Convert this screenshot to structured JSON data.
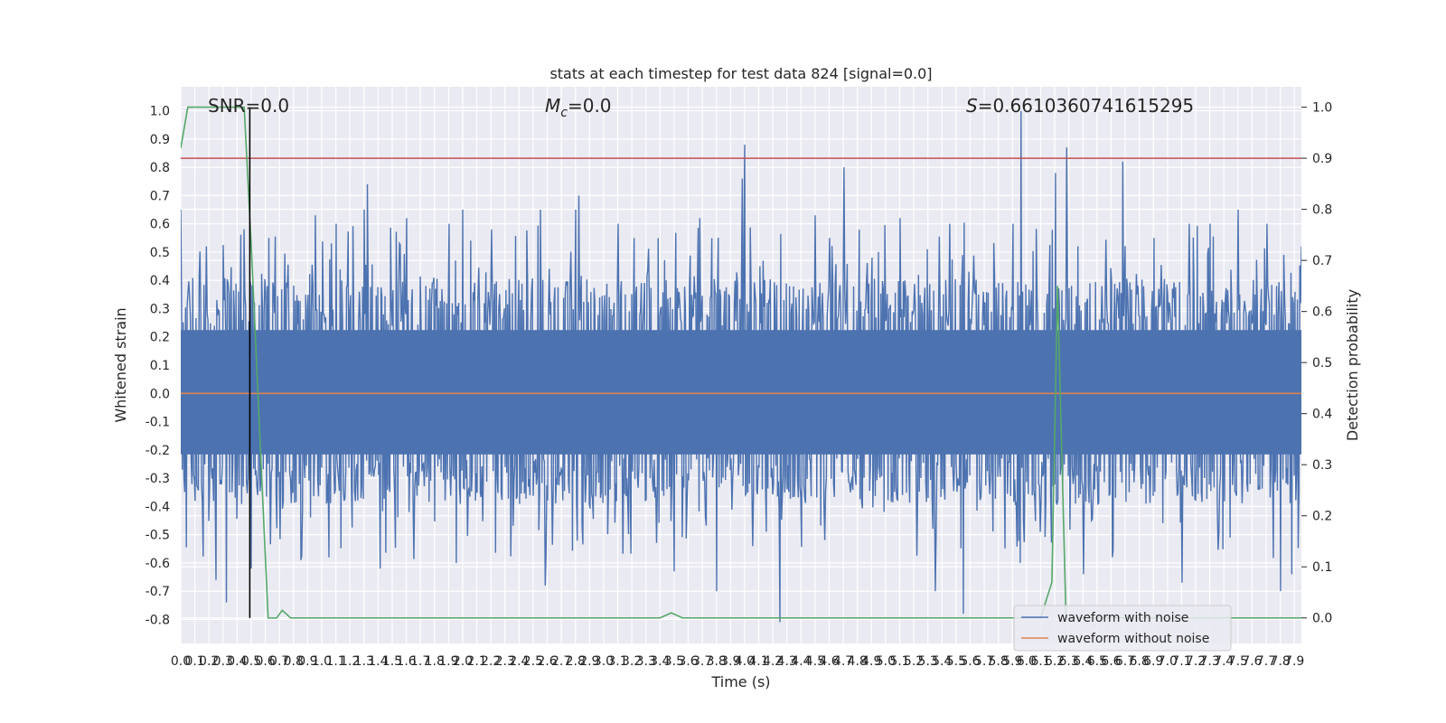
{
  "chart_data": {
    "type": "line",
    "title": "stats at each timestep for test data 824 [signal=0.0]",
    "xlabel": "Time (s)",
    "ylabel_left": "Whitened strain",
    "ylabel_right": "Detection probability",
    "xlim": [
      0.0,
      7.95
    ],
    "ylim_left": [
      -0.885,
      1.085
    ],
    "ylim_right": [
      -0.05,
      1.04
    ],
    "x_ticks": [
      "0.0",
      "0.1",
      "0.2",
      "0.3",
      "0.4",
      "0.5",
      "0.6",
      "0.7",
      "0.8",
      "0.9",
      "1.0",
      "1.1",
      "1.2",
      "1.3",
      "1.4",
      "1.5",
      "1.6",
      "1.7",
      "1.8",
      "1.9",
      "2.0",
      "2.1",
      "2.2",
      "2.3",
      "2.4",
      "2.5",
      "2.6",
      "2.7",
      "2.8",
      "2.9",
      "3.0",
      "3.1",
      "3.2",
      "3.3",
      "3.4",
      "3.5",
      "3.6",
      "3.7",
      "3.8",
      "3.9",
      "4.0",
      "4.1",
      "4.2",
      "4.3",
      "4.4",
      "4.5",
      "4.6",
      "4.7",
      "4.8",
      "4.9",
      "5.0",
      "5.1",
      "5.2",
      "5.3",
      "5.4",
      "5.5",
      "5.6",
      "5.7",
      "5.8",
      "5.9",
      "6.0",
      "6.1",
      "6.2",
      "6.3",
      "6.4",
      "6.5",
      "6.6",
      "6.7",
      "6.8",
      "6.9",
      "7.0",
      "7.1",
      "7.2",
      "7.3",
      "7.4",
      "7.5",
      "7.6",
      "7.7",
      "7.8",
      "7.9"
    ],
    "y_ticks_left": [
      "-0.8",
      "-0.7",
      "-0.6",
      "-0.5",
      "-0.4",
      "-0.3",
      "-0.2",
      "-0.1",
      "0.0",
      "0.1",
      "0.2",
      "0.3",
      "0.4",
      "0.5",
      "0.6",
      "0.7",
      "0.8",
      "0.9",
      "1.0"
    ],
    "y_ticks_right": [
      "0.0",
      "0.1",
      "0.2",
      "0.3",
      "0.4",
      "0.5",
      "0.6",
      "0.7",
      "0.8",
      "0.9",
      "1.0"
    ],
    "annotations": {
      "snr": "SNR=0.0",
      "mc_symbol": "M",
      "mc_sub": "c",
      "mc_value": "=0.0",
      "s_symbol": "S",
      "s_value": "=0.6610360741615295"
    },
    "marker_line_x": 0.49,
    "threshold": 0.9,
    "legend": {
      "placement": "lower-right",
      "entries": [
        "waveform with noise",
        "waveform without noise"
      ]
    },
    "series": [
      {
        "name": "waveform with noise",
        "axis": "left",
        "color": "#4c72b0",
        "style": "noise-band",
        "band": [
          -0.27,
          0.28
        ],
        "peaks": [
          [
            0.0,
            0.65
          ],
          [
            0.18,
            0.52
          ],
          [
            0.25,
            -0.66
          ],
          [
            0.32,
            -0.74
          ],
          [
            0.45,
            0.35
          ],
          [
            0.5,
            -0.62
          ],
          [
            0.62,
            0.55
          ],
          [
            0.85,
            -0.59
          ],
          [
            0.95,
            0.63
          ],
          [
            1.05,
            -0.58
          ],
          [
            1.1,
            0.6
          ],
          [
            1.3,
            0.65
          ],
          [
            1.32,
            0.74
          ],
          [
            1.41,
            -0.62
          ],
          [
            1.6,
            0.62
          ],
          [
            1.9,
            0.6
          ],
          [
            1.95,
            -0.6
          ],
          [
            2.0,
            0.65
          ],
          [
            2.2,
            0.58
          ],
          [
            2.55,
            0.65
          ],
          [
            2.58,
            -0.68
          ],
          [
            2.8,
            0.65
          ],
          [
            2.82,
            0.7
          ],
          [
            3.1,
            0.6
          ],
          [
            3.5,
            -0.63
          ],
          [
            3.68,
            0.62
          ],
          [
            3.8,
            -0.7
          ],
          [
            3.98,
            0.76
          ],
          [
            4.0,
            0.88
          ],
          [
            4.25,
            -0.81
          ],
          [
            4.5,
            0.63
          ],
          [
            4.6,
            0.55
          ],
          [
            4.7,
            0.8
          ],
          [
            5.1,
            0.62
          ],
          [
            5.35,
            -0.7
          ],
          [
            5.45,
            0.6
          ],
          [
            5.55,
            -0.78
          ],
          [
            5.9,
            0.6
          ],
          [
            5.95,
            -0.6
          ],
          [
            5.96,
            1.0
          ],
          [
            6.2,
            0.78
          ],
          [
            6.28,
            0.87
          ],
          [
            6.4,
            -0.64
          ],
          [
            6.68,
            0.82
          ],
          [
            6.9,
            0.55
          ],
          [
            7.1,
            -0.67
          ],
          [
            7.15,
            0.6
          ],
          [
            7.3,
            0.6
          ],
          [
            7.5,
            0.65
          ],
          [
            7.7,
            0.6
          ],
          [
            7.8,
            -0.7
          ],
          [
            7.88,
            -0.64
          ],
          [
            7.95,
            0.52
          ]
        ]
      },
      {
        "name": "waveform without noise",
        "axis": "left",
        "color": "#dd8452",
        "x": [
          0.0,
          7.95
        ],
        "y": [
          0.0,
          0.0
        ]
      },
      {
        "axis": "right",
        "color": "#55a868",
        "x": [
          0.0,
          0.05,
          0.1,
          0.45,
          0.5,
          0.6,
          0.62,
          0.68,
          0.72,
          0.78,
          0.88,
          3.4,
          3.48,
          3.56,
          6.1,
          6.18,
          6.22,
          6.28,
          7.95
        ],
        "y": [
          0.92,
          1.0,
          1.0,
          1.0,
          0.73,
          0.12,
          0.0,
          0.0,
          0.015,
          0.0,
          0.0,
          0.0,
          0.01,
          0.0,
          0.0,
          0.07,
          0.65,
          0.0,
          0.0
        ]
      }
    ]
  }
}
